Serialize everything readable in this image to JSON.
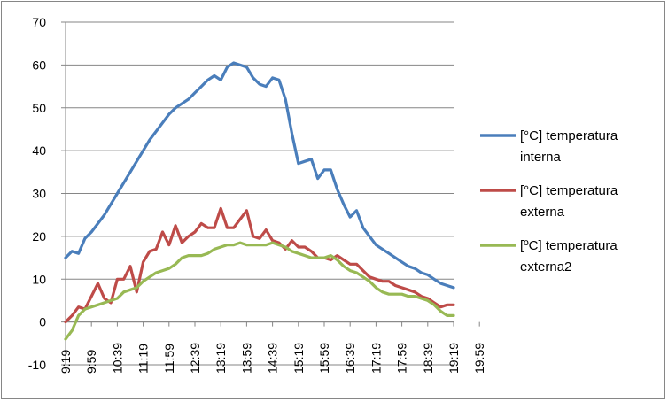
{
  "chart_data": {
    "type": "line",
    "title": "",
    "xlabel": "",
    "ylabel": "",
    "ylim": [
      -10,
      70
    ],
    "yticks": [
      -10,
      0,
      10,
      20,
      30,
      40,
      50,
      60,
      70
    ],
    "grid": "horizontal",
    "legend_position": "right",
    "x_tick_labels": [
      "9:19",
      "9:59",
      "10:39",
      "11:19",
      "11:59",
      "12:39",
      "13:19",
      "13:59",
      "14:39",
      "15:19",
      "15:59",
      "16:39",
      "17:19",
      "17:59",
      "18:39",
      "19:19",
      "19:59"
    ],
    "x_points_per_tick": 4,
    "series": [
      {
        "name": "[°C] temperatura interna",
        "color": "#4a7ebb",
        "legend_lines": [
          "[°C] temperatura",
          "interna"
        ],
        "values": [
          15,
          16.5,
          16,
          19.5,
          21,
          23,
          25,
          27.5,
          30,
          32.5,
          35,
          37.5,
          40,
          42.5,
          44.5,
          46.5,
          48.5,
          50,
          51,
          52,
          53.5,
          55,
          56.5,
          57.5,
          56.5,
          59.5,
          60.5,
          60,
          59.5,
          57,
          55.5,
          55,
          57,
          56.5,
          52,
          44,
          37,
          37.5,
          38,
          33.5,
          35.5,
          35.5,
          31,
          27.5,
          24.5,
          26,
          22,
          20,
          18,
          17,
          16,
          15,
          14,
          13,
          12.5,
          11.5,
          11,
          10,
          9,
          8.5,
          8
        ]
      },
      {
        "name": "[°C] temperatura externa",
        "color": "#be4b48",
        "legend_lines": [
          "[°C] temperatura",
          "externa"
        ],
        "values": [
          0,
          1.5,
          3.5,
          3,
          6,
          9,
          5.5,
          4.5,
          10,
          10,
          13,
          7,
          14,
          16.5,
          17,
          21,
          18,
          22.5,
          18.5,
          20,
          21,
          23,
          22,
          22,
          26.5,
          22,
          22,
          24,
          26,
          20,
          19.5,
          21.5,
          19,
          18.5,
          17,
          19,
          17.5,
          17.5,
          16.5,
          15,
          15,
          14.5,
          15.5,
          14.5,
          13.5,
          13.5,
          12,
          10.5,
          10,
          9.5,
          9.5,
          8.5,
          8,
          7.5,
          7,
          6,
          5.5,
          4.5,
          3.5,
          4,
          4
        ]
      },
      {
        "name": "[ºC] temperatura externa2",
        "color": "#98b954",
        "legend_lines": [
          "[ºC] temperatura",
          "externa2"
        ],
        "values": [
          -4,
          -2,
          1.5,
          3,
          3.5,
          4,
          4.5,
          5,
          5.5,
          7,
          7.5,
          8,
          9.5,
          10.5,
          11.5,
          12,
          12.5,
          13.5,
          15,
          15.5,
          15.5,
          15.5,
          16,
          17,
          17.5,
          18,
          18,
          18.5,
          18,
          18,
          18,
          18,
          18.5,
          18,
          17.5,
          16.5,
          16,
          15.5,
          15,
          15,
          15,
          15.5,
          14.5,
          13,
          12,
          11.5,
          10.5,
          9.5,
          8,
          7,
          6.5,
          6.5,
          6.5,
          6,
          6,
          5.5,
          5,
          4,
          2.5,
          1.5,
          1.5
        ]
      }
    ]
  }
}
